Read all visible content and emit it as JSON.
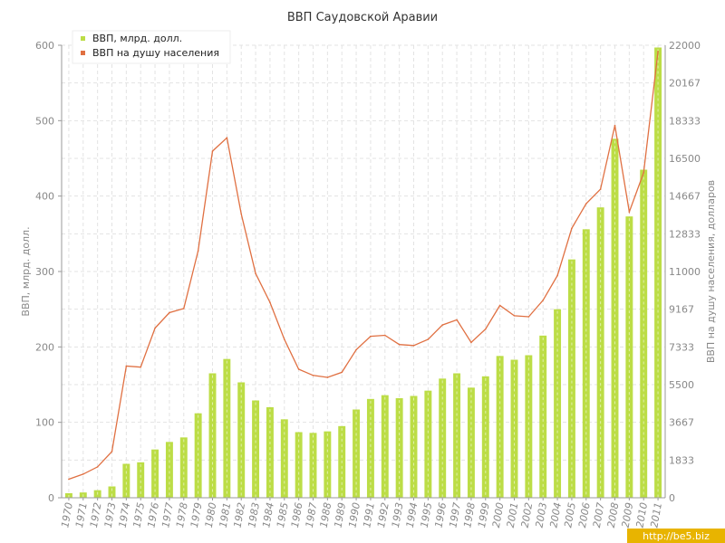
{
  "chart_data": {
    "type": "bar+line",
    "title": "ВВП Саудовской Аравии",
    "categories": [
      "1970",
      "1971",
      "1972",
      "1973",
      "1974",
      "1975",
      "1976",
      "1977",
      "1978",
      "1979",
      "1980",
      "1981",
      "1982",
      "1983",
      "1984",
      "1985",
      "1986",
      "1987",
      "1988",
      "1989",
      "1990",
      "1991",
      "1992",
      "1993",
      "1994",
      "1995",
      "1996",
      "1997",
      "1998",
      "1999",
      "2000",
      "2001",
      "2002",
      "2003",
      "2004",
      "2005",
      "2006",
      "2007",
      "2008",
      "2009",
      "2010",
      "2011"
    ],
    "ylabel": "ВВП, млрд. долл.",
    "y2label": "ВВП на душу населения, долларов",
    "ylim": [
      0,
      600
    ],
    "y2lim": [
      0,
      22000
    ],
    "yticks": [
      "0",
      "100",
      "200",
      "300",
      "400",
      "500",
      "600"
    ],
    "y2ticks": [
      "0",
      "1833",
      "3667",
      "5500",
      "7333",
      "9167",
      "11000",
      "12833",
      "14667",
      "16500",
      "18333",
      "20167",
      "22000"
    ],
    "grid": true,
    "legend_position": "top-left",
    "series": [
      {
        "name": "ВВП, млрд. долл.",
        "type": "bar",
        "axis": "left",
        "color": "#bcdd46",
        "values": [
          6,
          7,
          10,
          15,
          45,
          47,
          64,
          74,
          80,
          112,
          165,
          184,
          153,
          129,
          120,
          104,
          87,
          86,
          88,
          95,
          117,
          131,
          136,
          132,
          135,
          142,
          158,
          165,
          146,
          161,
          188,
          183,
          189,
          215,
          250,
          316,
          356,
          385,
          476,
          373,
          435,
          597
        ]
      },
      {
        "name": "ВВП на душу населения",
        "type": "line",
        "axis": "right",
        "color": "#e07042",
        "values": [
          900,
          1150,
          1500,
          2250,
          6400,
          6350,
          8250,
          9000,
          9200,
          12000,
          16850,
          17500,
          13800,
          10900,
          9500,
          7700,
          6250,
          5950,
          5850,
          6100,
          7200,
          7850,
          7900,
          7450,
          7400,
          7700,
          8400,
          8650,
          7550,
          8200,
          9350,
          8850,
          8800,
          9600,
          10800,
          13100,
          14300,
          15000,
          18100,
          13900,
          15800,
          21700
        ]
      }
    ]
  },
  "watermark": "http://be5.biz"
}
